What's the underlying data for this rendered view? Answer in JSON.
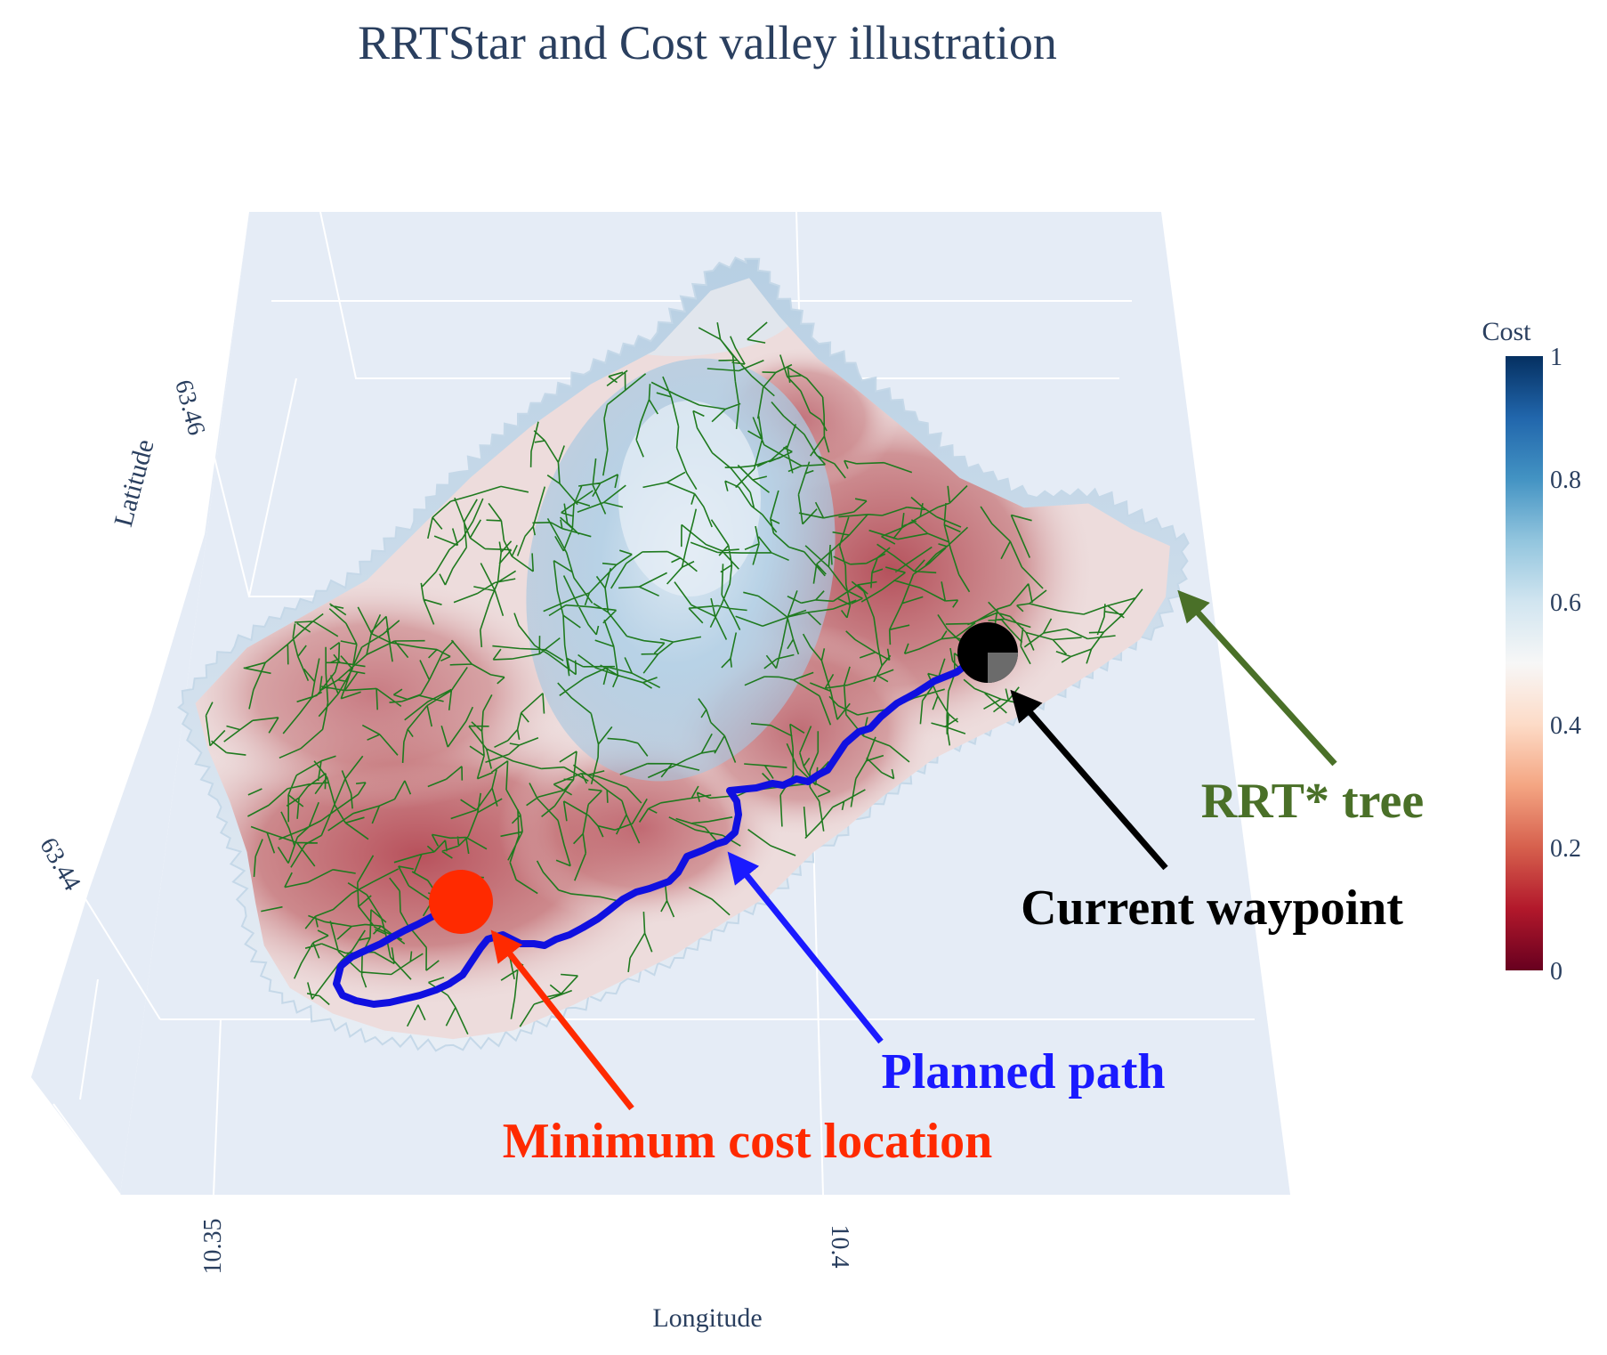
{
  "chart_data": {
    "type": "surface",
    "title": "RRTStar and Cost valley illustration",
    "xlabel": "Longitude",
    "ylabel": "Latitude",
    "x_ticks": [
      "10.35",
      "10.4"
    ],
    "y_ticks": [
      "63.46",
      "63.44"
    ],
    "colorbar": {
      "title": "Cost",
      "ticks": [
        "1",
        "0.8",
        "0.6",
        "0.4",
        "0.2",
        "0"
      ],
      "range": [
        0,
        1
      ],
      "colorscale": [
        "#67001f",
        "#b2182b",
        "#d6604d",
        "#f4a582",
        "#fddbc7",
        "#f7f7f7",
        "#d1e5f0",
        "#92c5de",
        "#4393c3",
        "#2166ac",
        "#053061"
      ]
    },
    "annotations": [
      {
        "label": "Minimum cost location",
        "color": "#ff2a00"
      },
      {
        "label": "Planned path",
        "color": "#1a1aff"
      },
      {
        "label": "Current waypoint",
        "color": "#000000"
      },
      {
        "label": "RRT* tree",
        "color": "#4a7028"
      }
    ],
    "series_colors": {
      "tree": "#1f7a1f",
      "path": "#1010e0",
      "min_cost_marker": "#ff2a00",
      "current_waypoint_marker": "#000000"
    }
  }
}
